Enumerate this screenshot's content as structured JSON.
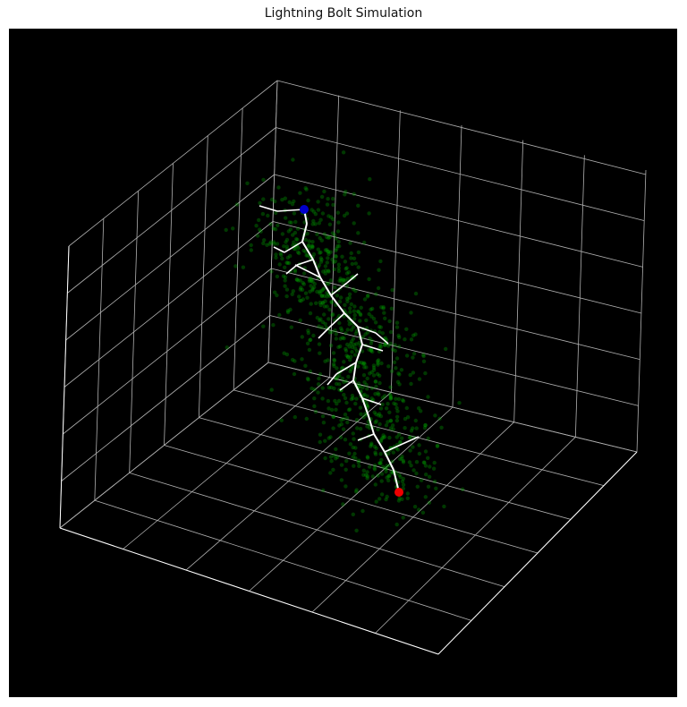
{
  "chart_data": {
    "type": "scatter",
    "projection": "3d",
    "title": "Lightning Bolt Simulation",
    "xlabel": "",
    "ylabel": "",
    "zlabel": "",
    "grid": true,
    "tick_labels_visible": false,
    "background": "#000000",
    "colors": {
      "pane_edges": "#ffffff",
      "gridlines": "#b0b0b0",
      "charge_points": "#00a000",
      "bolt": "#ffffff",
      "start_point": "#0000cc",
      "end_point": "#ee0000"
    },
    "series": [
      {
        "role": "charge_points",
        "marker": "dot",
        "alpha": 0.3,
        "count": 900,
        "distribution": "cloud around the bolt path"
      },
      {
        "role": "bolt",
        "marker": "line",
        "description": "branched path from start point to end point"
      },
      {
        "role": "start_point",
        "marker": "circle"
      },
      {
        "role": "end_point",
        "marker": "circle"
      }
    ]
  }
}
